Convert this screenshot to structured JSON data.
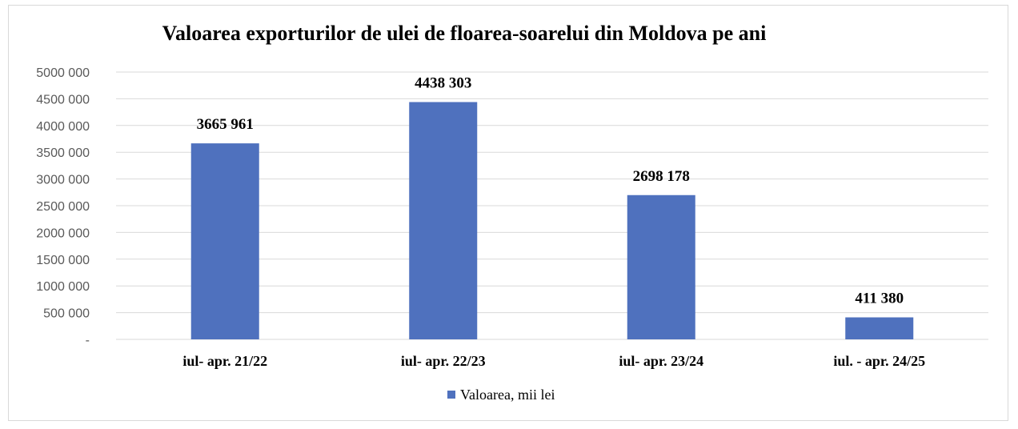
{
  "chart_data": {
    "type": "bar",
    "title": "Valoarea exporturilor de ulei de floarea-soarelui  din  Moldova pe ani",
    "categories": [
      "iul- apr. 21/22",
      "iul- apr. 22/23",
      "iul- apr. 23/24",
      "iul. - apr. 24/25"
    ],
    "series": [
      {
        "name": "Valoarea, mii lei",
        "values": [
          3665961,
          4438303,
          2698178,
          411380
        ],
        "data_labels": [
          "3665 961",
          "4438 303",
          "2698 178",
          "411 380"
        ],
        "color": "#4f71be"
      }
    ],
    "ylim": [
      0,
      5000000
    ],
    "yticks": [
      0,
      500000,
      1000000,
      1500000,
      2000000,
      2500000,
      3000000,
      3500000,
      4000000,
      4500000,
      5000000
    ],
    "ytick_labels": [
      "-",
      "500 000",
      "1000 000",
      "1500 000",
      "2000 000",
      "2500 000",
      "3000 000",
      "3500 000",
      "4000 000",
      "4500 000",
      "5000 000"
    ],
    "grid": true,
    "legend_position": "bottom"
  }
}
